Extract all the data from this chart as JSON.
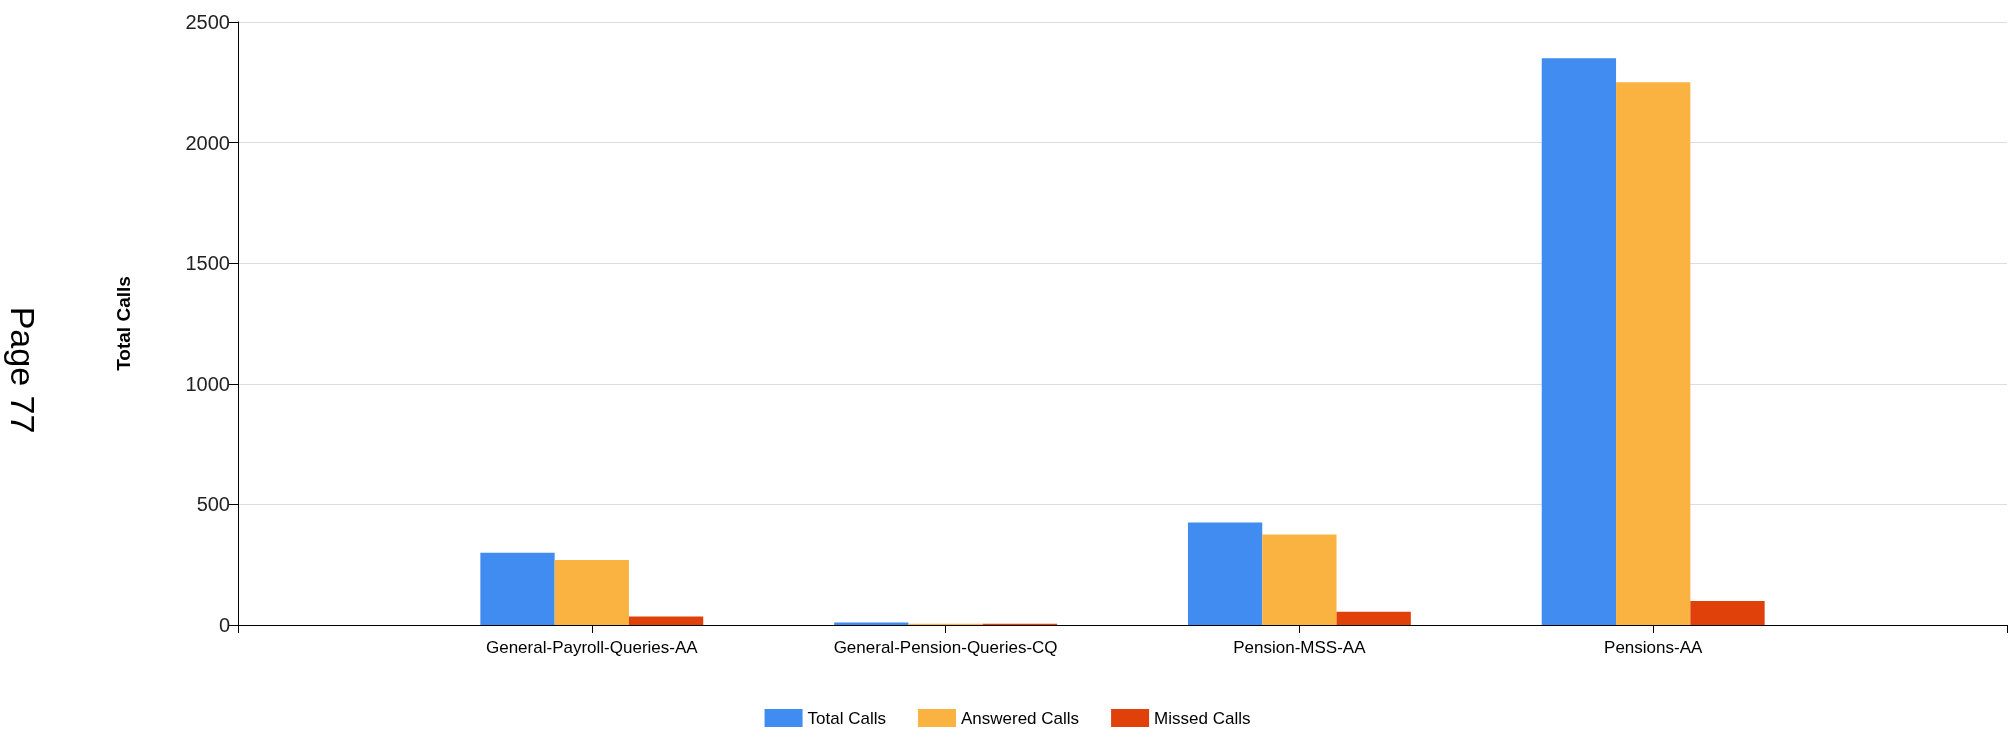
{
  "chart_data": {
    "type": "bar",
    "ylabel": "Total Calls",
    "categories": [
      null,
      "General-Payroll-Queries-AA",
      "General-Pension-Queries-CQ",
      "Pension-MSS-AA",
      "Pensions-AA",
      null
    ],
    "series": [
      {
        "name": "Total Calls",
        "color": "#418cf0",
        "values": [
          null,
          300,
          10,
          425,
          2350,
          null
        ]
      },
      {
        "name": "Answered Calls",
        "color": "#fab341",
        "values": [
          null,
          270,
          5,
          375,
          2250,
          null
        ]
      },
      {
        "name": "Missed Calls",
        "color": "#e0400a",
        "values": [
          null,
          35,
          5,
          55,
          100,
          null
        ]
      }
    ],
    "ylim": [
      0,
      2500
    ],
    "yticks": [
      0,
      500,
      1000,
      1500,
      2000,
      2500
    ],
    "grid": "y",
    "legend": "bottom",
    "annotations": [
      "Page 77"
    ]
  }
}
